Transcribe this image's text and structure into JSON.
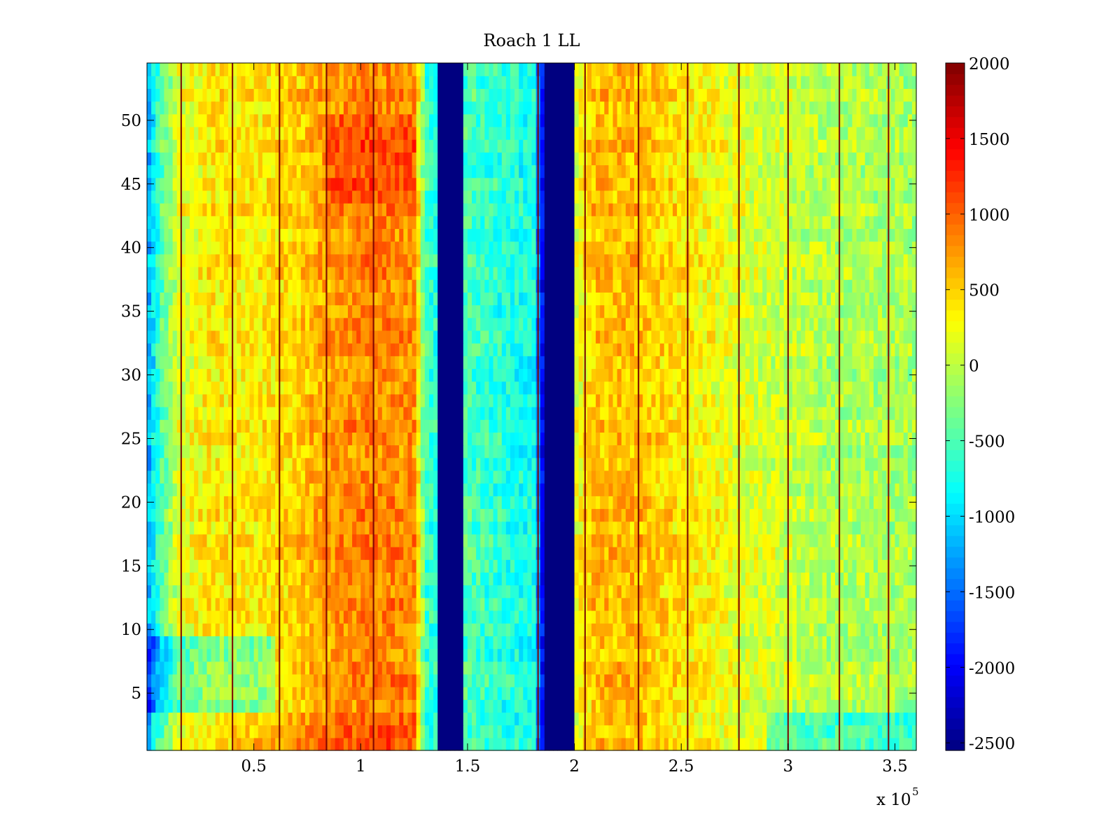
{
  "chart_data": {
    "type": "heatmap",
    "title": "Roach 1 LL",
    "xlabel": "",
    "ylabel": "",
    "x_multiplier_label": "x 10",
    "x_multiplier_exponent": "5",
    "xlim": [
      0,
      360000
    ],
    "ylim": [
      0.5,
      54.5
    ],
    "x_ticks": [
      {
        "value": 50000,
        "label": "0.5"
      },
      {
        "value": 100000,
        "label": "1"
      },
      {
        "value": 150000,
        "label": "1.5"
      },
      {
        "value": 200000,
        "label": "2"
      },
      {
        "value": 250000,
        "label": "2.5"
      },
      {
        "value": 300000,
        "label": "3"
      },
      {
        "value": 350000,
        "label": "3.5"
      }
    ],
    "y_ticks": [
      {
        "value": 5,
        "label": "5"
      },
      {
        "value": 10,
        "label": "10"
      },
      {
        "value": 15,
        "label": "15"
      },
      {
        "value": 20,
        "label": "20"
      },
      {
        "value": 25,
        "label": "25"
      },
      {
        "value": 30,
        "label": "30"
      },
      {
        "value": 35,
        "label": "35"
      },
      {
        "value": 40,
        "label": "40"
      },
      {
        "value": 45,
        "label": "45"
      },
      {
        "value": 50,
        "label": "50"
      }
    ],
    "colorbar": {
      "colormap": "jet",
      "range": [
        -2550,
        2000
      ],
      "ticks": [
        {
          "value": 2000,
          "label": "2000"
        },
        {
          "value": 1500,
          "label": "1500"
        },
        {
          "value": 1000,
          "label": "1000"
        },
        {
          "value": 500,
          "label": "500"
        },
        {
          "value": 0,
          "label": "0"
        },
        {
          "value": -500,
          "label": "-500"
        },
        {
          "value": -1000,
          "label": "-1000"
        },
        {
          "value": -1500,
          "label": "-1500"
        },
        {
          "value": -2000,
          "label": "-2000"
        },
        {
          "value": -2500,
          "label": "-2500"
        }
      ]
    },
    "rows": 54,
    "noise_amplitude": 280,
    "column_profile": [
      {
        "x": 0,
        "value": -1300
      },
      {
        "x": 6000,
        "value": -500
      },
      {
        "x": 15000,
        "value": 150
      },
      {
        "x": 30000,
        "value": 400
      },
      {
        "x": 50000,
        "value": 350
      },
      {
        "x": 70000,
        "value": 500
      },
      {
        "x": 85000,
        "value": 750
      },
      {
        "x": 100000,
        "value": 850
      },
      {
        "x": 115000,
        "value": 850
      },
      {
        "x": 126000,
        "value": 800
      },
      {
        "x": 127500,
        "value": 100
      },
      {
        "x": 131000,
        "value": -600
      },
      {
        "x": 136000,
        "value": -700
      },
      {
        "x": 137000,
        "value": -2550
      },
      {
        "x": 148000,
        "value": -2550
      },
      {
        "x": 149000,
        "value": -500
      },
      {
        "x": 165000,
        "value": -650
      },
      {
        "x": 181000,
        "value": -750
      },
      {
        "x": 187000,
        "value": -2550
      },
      {
        "x": 199000,
        "value": -2550
      },
      {
        "x": 200000,
        "value": 150
      },
      {
        "x": 210000,
        "value": 600
      },
      {
        "x": 230000,
        "value": 600
      },
      {
        "x": 250000,
        "value": 400
      },
      {
        "x": 280000,
        "value": 150
      },
      {
        "x": 320000,
        "value": -50
      },
      {
        "x": 360000,
        "value": -100
      }
    ],
    "row_adjustments": [
      {
        "rows": [
          1,
          3
        ],
        "x_range": [
          40000,
          126000
        ],
        "delta": 250
      },
      {
        "rows": [
          1,
          3
        ],
        "x_range": [
          290000,
          360000
        ],
        "delta": -450
      },
      {
        "rows": [
          4,
          9
        ],
        "x_range": [
          0,
          60000
        ],
        "delta": -600
      },
      {
        "rows": [
          44,
          50
        ],
        "x_range": [
          85000,
          126000
        ],
        "delta": 250
      }
    ],
    "dark_red_stripes": [
      16000,
      40000,
      62000,
      84000,
      106000,
      183000,
      205000,
      230000,
      253000,
      277000,
      300000,
      324000,
      347000
    ],
    "colors": {
      "stripe": "#7a0000",
      "axes": "#000000",
      "background": "#ffffff"
    }
  }
}
